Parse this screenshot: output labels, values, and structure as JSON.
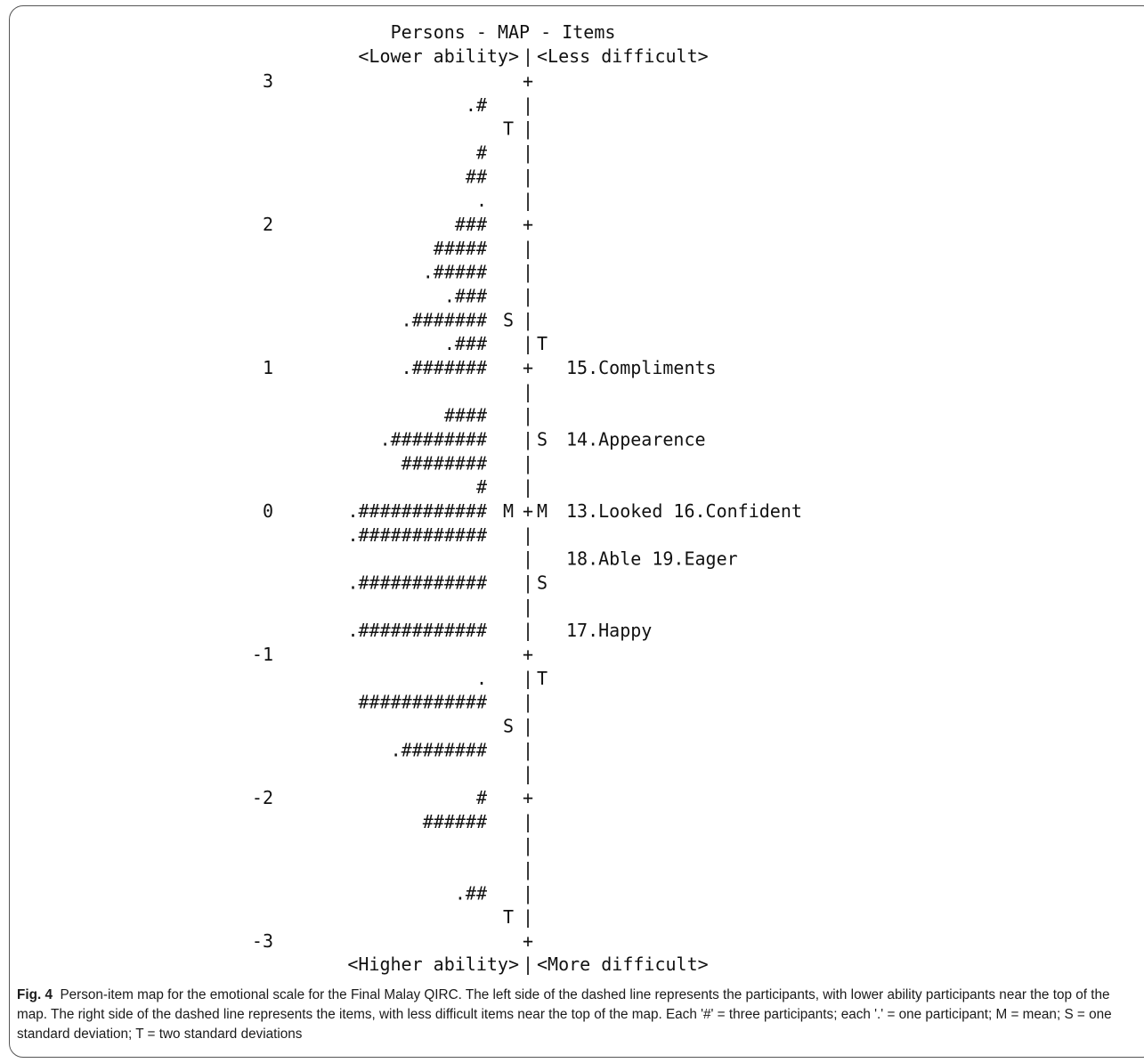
{
  "chart_data": {
    "type": "person-item map",
    "title": "Persons - MAP - Items",
    "top_left_label": "<Lower ability>",
    "top_right_label": "<Less difficult>",
    "bottom_left_label": "<Higher ability>",
    "bottom_right_label": "<More difficult>",
    "y_ticks": [
      {
        "value": 3,
        "text": "3"
      },
      {
        "value": 2,
        "text": "2"
      },
      {
        "value": 1,
        "text": "1"
      },
      {
        "value": 0,
        "text": "0"
      },
      {
        "value": -1,
        "text": "-1"
      },
      {
        "value": -2,
        "text": "-2"
      },
      {
        "value": -3,
        "text": "-3"
      }
    ],
    "ylim": [
      -3,
      3
    ],
    "rows": [
      {
        "persons": "",
        "person_marker": "",
        "axis": "+",
        "item_marker": "",
        "items": ""
      },
      {
        "persons": ".#",
        "person_marker": "",
        "axis": "|",
        "item_marker": "",
        "items": ""
      },
      {
        "persons": "",
        "person_marker": "T",
        "axis": "|",
        "item_marker": "",
        "items": ""
      },
      {
        "persons": "#",
        "person_marker": "",
        "axis": "|",
        "item_marker": "",
        "items": ""
      },
      {
        "persons": "##",
        "person_marker": "",
        "axis": "|",
        "item_marker": "",
        "items": ""
      },
      {
        "persons": ".",
        "person_marker": "",
        "axis": "|",
        "item_marker": "",
        "items": ""
      },
      {
        "persons": "###",
        "person_marker": "",
        "axis": "+",
        "item_marker": "",
        "items": ""
      },
      {
        "persons": "#####",
        "person_marker": "",
        "axis": "|",
        "item_marker": "",
        "items": ""
      },
      {
        "persons": ".#####",
        "person_marker": "",
        "axis": "|",
        "item_marker": "",
        "items": ""
      },
      {
        "persons": ".###",
        "person_marker": "",
        "axis": "|",
        "item_marker": "",
        "items": ""
      },
      {
        "persons": ".#######",
        "person_marker": "S",
        "axis": "|",
        "item_marker": "",
        "items": ""
      },
      {
        "persons": ".###",
        "person_marker": "",
        "axis": "|",
        "item_marker": "T",
        "items": ""
      },
      {
        "persons": ".#######",
        "person_marker": "",
        "axis": "+",
        "item_marker": "",
        "items": "15.Compliments"
      },
      {
        "persons": "",
        "person_marker": "",
        "axis": "|",
        "item_marker": "",
        "items": ""
      },
      {
        "persons": "####",
        "person_marker": "",
        "axis": "|",
        "item_marker": "",
        "items": ""
      },
      {
        "persons": ".#########",
        "person_marker": "",
        "axis": "|",
        "item_marker": "S",
        "items": "14.Appearence"
      },
      {
        "persons": "########",
        "person_marker": "",
        "axis": "|",
        "item_marker": "",
        "items": ""
      },
      {
        "persons": "#",
        "person_marker": "",
        "axis": "|",
        "item_marker": "",
        "items": ""
      },
      {
        "persons": ".############",
        "person_marker": "M",
        "axis": "+",
        "item_marker": "M",
        "items": "13.Looked  16.Confident"
      },
      {
        "persons": ".############",
        "person_marker": "",
        "axis": "|",
        "item_marker": "",
        "items": ""
      },
      {
        "persons": "",
        "person_marker": "",
        "axis": "|",
        "item_marker": "",
        "items": "18.Able  19.Eager"
      },
      {
        "persons": ".############",
        "person_marker": "",
        "axis": "|",
        "item_marker": "S",
        "items": ""
      },
      {
        "persons": "",
        "person_marker": "",
        "axis": "|",
        "item_marker": "",
        "items": ""
      },
      {
        "persons": ".############",
        "person_marker": "",
        "axis": "|",
        "item_marker": "",
        "items": "17.Happy"
      },
      {
        "persons": "",
        "person_marker": "",
        "axis": "+",
        "item_marker": "",
        "items": ""
      },
      {
        "persons": ".",
        "person_marker": "",
        "axis": "|",
        "item_marker": "T",
        "items": ""
      },
      {
        "persons": "############",
        "person_marker": "",
        "axis": "|",
        "item_marker": "",
        "items": ""
      },
      {
        "persons": "",
        "person_marker": "S",
        "axis": "|",
        "item_marker": "",
        "items": ""
      },
      {
        "persons": ".########",
        "person_marker": "",
        "axis": "|",
        "item_marker": "",
        "items": ""
      },
      {
        "persons": "",
        "person_marker": "",
        "axis": "|",
        "item_marker": "",
        "items": ""
      },
      {
        "persons": "#",
        "person_marker": "",
        "axis": "+",
        "item_marker": "",
        "items": ""
      },
      {
        "persons": "######",
        "person_marker": "",
        "axis": "|",
        "item_marker": "",
        "items": ""
      },
      {
        "persons": "",
        "person_marker": "",
        "axis": "|",
        "item_marker": "",
        "items": ""
      },
      {
        "persons": "",
        "person_marker": "",
        "axis": "|",
        "item_marker": "",
        "items": ""
      },
      {
        "persons": ".##",
        "person_marker": "",
        "axis": "|",
        "item_marker": "",
        "items": ""
      },
      {
        "persons": "",
        "person_marker": "T",
        "axis": "|",
        "item_marker": "",
        "items": ""
      },
      {
        "persons": "",
        "person_marker": "",
        "axis": "+",
        "item_marker": "",
        "items": ""
      }
    ]
  },
  "caption": {
    "label": "Fig. 4",
    "text": "Person-item map for the emotional scale for the Final Malay QIRC. The left side of the dashed line represents the participants, with lower ability participants near the top of the map. The right side of the dashed line represents the items, with less difficult items near the top of the map. Each '#' = three participants; each '.' = one participant; M = mean; S = one standard deviation; T = two standard deviations"
  }
}
